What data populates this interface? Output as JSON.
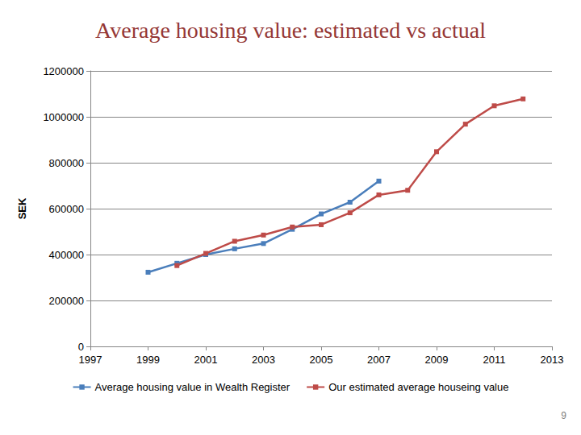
{
  "chart_data": {
    "type": "line",
    "title": "Average housing value: estimated vs actual",
    "y_label": "SEK",
    "annotations": [
      "9"
    ],
    "x": [
      1999,
      2000,
      2001,
      2002,
      2003,
      2004,
      2005,
      2006,
      2007,
      2008,
      2009,
      2010,
      2011,
      2012
    ],
    "series": [
      {
        "name": "Average housing value in Wealth Register",
        "color": "#4a7ebb",
        "values": [
          323000,
          362000,
          400000,
          425000,
          448000,
          510000,
          577000,
          628000,
          720000,
          null,
          null,
          null,
          null,
          null
        ]
      },
      {
        "name": "Our estimated average houseing value",
        "color": "#be4b48",
        "values": [
          null,
          352000,
          405000,
          458000,
          485000,
          520000,
          530000,
          582000,
          660000,
          680000,
          848000,
          968000,
          1048000,
          1078000
        ]
      }
    ],
    "xlim": [
      1997,
      2013
    ],
    "xticks": [
      1997,
      1999,
      2001,
      2003,
      2005,
      2007,
      2009,
      2011,
      2013
    ],
    "ylim": [
      0,
      1200000
    ],
    "yticks": [
      0,
      200000,
      400000,
      600000,
      800000,
      1000000,
      1200000
    ],
    "grid": true,
    "legend": "bottom",
    "marker": "square"
  }
}
